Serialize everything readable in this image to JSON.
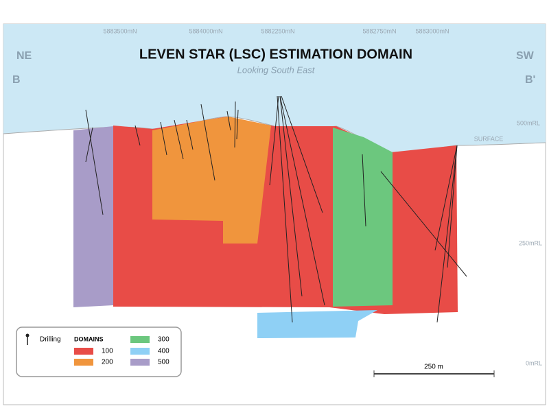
{
  "title": "LEVEN STAR (LSC) ESTIMATION DOMAIN",
  "subtitle": "Looking South East",
  "corners": {
    "left_top": "NE",
    "left_bottom": "B",
    "right_top": "SW",
    "right_bottom": "B'"
  },
  "northings": [
    "5883500mN",
    "5884000mN",
    "5882250mN",
    "5882750mN",
    "5883000mN"
  ],
  "elevations": [
    "500mRL",
    "250mRL",
    "0mRL"
  ],
  "surface_label": "SURFACE",
  "legend": {
    "drilling": "Drilling",
    "domains_title": "DOMAINS",
    "domains": [
      {
        "label": "100",
        "color": "#e84c47"
      },
      {
        "label": "200",
        "color": "#f0953d"
      },
      {
        "label": "300",
        "color": "#6cc77e"
      },
      {
        "label": "400",
        "color": "#8fd0f5"
      },
      {
        "label": "500",
        "color": "#a89cc8"
      }
    ]
  },
  "scale_bar": "250 m"
}
